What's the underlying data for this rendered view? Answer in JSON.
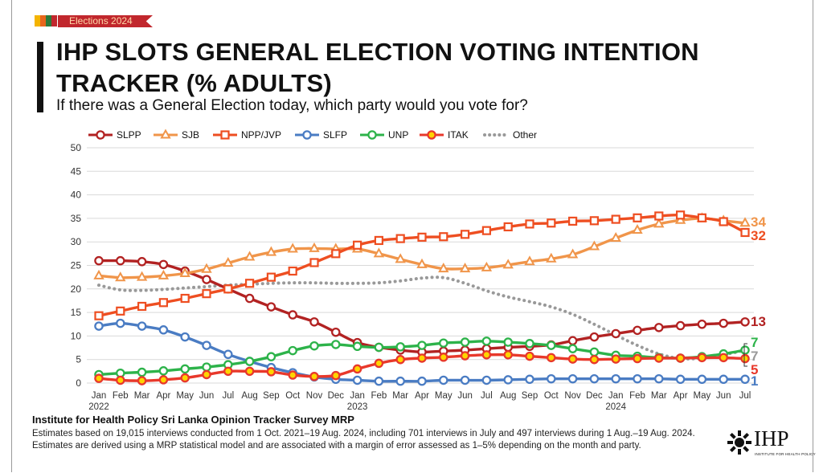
{
  "badge": {
    "label": "Elections 2024",
    "flag_colors": [
      "#f4b400",
      "#e8661c",
      "#2d7a3b",
      "#c1272d"
    ]
  },
  "heading": {
    "title": "IHP SLOTS GENERAL ELECTION VOTING INTENTION TRACKER (% ADULTS)",
    "subtitle": "If there was a General Election today, which party would you vote for?"
  },
  "chart_data": {
    "type": "line",
    "title": "",
    "xlabel": "",
    "ylabel": "",
    "ylim": [
      0,
      50
    ],
    "yticks": [
      0,
      5,
      10,
      15,
      20,
      25,
      30,
      35,
      40,
      45,
      50
    ],
    "grid": true,
    "legend_position": "top",
    "x": [
      "Jan",
      "Feb",
      "Mar",
      "Apr",
      "May",
      "Jun",
      "Jul",
      "Aug",
      "Sep",
      "Oct",
      "Nov",
      "Dec",
      "Jan",
      "Feb",
      "Mar",
      "Apr",
      "May",
      "Jun",
      "Jul",
      "Aug",
      "Sep",
      "Oct",
      "Nov",
      "Dec",
      "Jan",
      "Feb",
      "Mar",
      "Apr",
      "May",
      "Jun",
      "Jul"
    ],
    "year_labels": [
      {
        "index": 0,
        "label": "2022"
      },
      {
        "index": 12,
        "label": "2023"
      },
      {
        "index": 24,
        "label": "2024"
      }
    ],
    "series": [
      {
        "name": "SLPP",
        "color": "#b22222",
        "marker": "circle",
        "end_label": "13",
        "values": [
          26,
          26,
          25.8,
          25.2,
          23.8,
          22,
          20,
          18,
          16.2,
          14.5,
          13,
          10.8,
          8.6,
          7.6,
          7,
          6.6,
          6.8,
          7,
          7.3,
          7.6,
          7.8,
          8.1,
          9,
          9.8,
          10.5,
          11.2,
          11.8,
          12.2,
          12.5,
          12.7,
          13
        ]
      },
      {
        "name": "SJB",
        "color": "#f0954a",
        "marker": "triangle",
        "end_label": "34",
        "values": [
          22.8,
          22.4,
          22.5,
          22.8,
          23.3,
          24.2,
          25.5,
          26.8,
          27.8,
          28.5,
          28.6,
          28.5,
          28.5,
          27.5,
          26.3,
          25.2,
          24.3,
          24.3,
          24.5,
          25.1,
          25.8,
          26.4,
          27.3,
          29,
          30.8,
          32.5,
          33.8,
          34.6,
          35,
          34.5,
          34
        ]
      },
      {
        "name": "NPP/JVP",
        "color": "#ee4e21",
        "marker": "square",
        "end_label": "32",
        "values": [
          14.3,
          15.3,
          16.3,
          17.1,
          18,
          19,
          20,
          21.2,
          22.5,
          23.8,
          25.6,
          27.5,
          29.3,
          30.3,
          30.7,
          31,
          31.1,
          31.6,
          32.4,
          33.2,
          33.8,
          34,
          34.4,
          34.5,
          34.8,
          35.1,
          35.5,
          35.7,
          35.1,
          34.3,
          32
        ]
      },
      {
        "name": "SLFP",
        "color": "#4a7cc3",
        "marker": "circle",
        "end_label": "1",
        "values": [
          12.1,
          12.7,
          12.1,
          11.3,
          9.8,
          8,
          6.1,
          4.6,
          3.3,
          2.2,
          1.3,
          0.8,
          0.6,
          0.4,
          0.4,
          0.4,
          0.6,
          0.6,
          0.6,
          0.7,
          0.8,
          0.9,
          0.9,
          0.9,
          0.9,
          0.9,
          0.9,
          0.8,
          0.8,
          0.8,
          0.8
        ]
      },
      {
        "name": "UNP",
        "color": "#2db34a",
        "marker": "circle",
        "end_label": "7",
        "values": [
          1.8,
          2.1,
          2.3,
          2.6,
          3,
          3.4,
          3.9,
          4.6,
          5.6,
          6.9,
          7.9,
          8.2,
          7.8,
          7.6,
          7.7,
          8,
          8.5,
          8.7,
          8.9,
          8.7,
          8.4,
          8,
          7.3,
          6.6,
          5.9,
          5.7,
          5.4,
          5.3,
          5.6,
          6.2,
          7
        ]
      },
      {
        "name": "ITAK",
        "color": "#e8382b",
        "marker": "circle-yellow",
        "end_label": "5",
        "values": [
          1,
          0.6,
          0.5,
          0.7,
          1.1,
          1.8,
          2.5,
          2.5,
          2.4,
          1.7,
          1.4,
          1.6,
          3,
          4.2,
          5,
          5.3,
          5.5,
          5.8,
          6,
          6,
          5.7,
          5.4,
          5.1,
          5,
          5.1,
          5.2,
          5.3,
          5.3,
          5.4,
          5.4,
          5.2
        ]
      },
      {
        "name": "Other",
        "color": "#999999",
        "marker": "none",
        "dotted": true,
        "end_label": "7",
        "values": [
          20.8,
          19.8,
          19.7,
          19.9,
          20.2,
          20.5,
          20.8,
          21,
          21.2,
          21.3,
          21.3,
          21.2,
          21.2,
          21.3,
          21.7,
          22.3,
          22.4,
          21.2,
          19.6,
          18.3,
          17.3,
          16.2,
          14.6,
          12.5,
          10.2,
          8,
          6.2,
          5.2,
          5.3,
          6,
          7
        ]
      }
    ]
  },
  "footer": {
    "source_title": "Institute for Health Policy Sri Lanka Opinion Tracker Survey MRP",
    "source_text": "Estimates based on 19,015 interviews conducted from 1 Oct. 2021–19 Aug. 2024, including 701 interviews in July and 497 interviews during 1 Aug.–19 Aug. 2024. Estimates are derived using a MRP statistical model and are associated with a margin of error assessed as 1–5% depending on the month and party.",
    "logo_text": "IHP",
    "logo_subtext": "INSTITUTE FOR HEALTH POLICY"
  }
}
